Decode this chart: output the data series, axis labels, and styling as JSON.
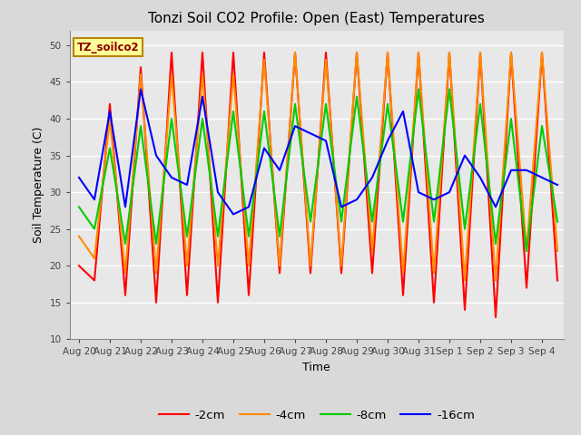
{
  "title": "Tonzi Soil CO2 Profile: Open (East) Temperatures",
  "xlabel": "Time",
  "ylabel": "Soil Temperature (C)",
  "legend_label": "TZ_soilco2",
  "series_labels": [
    "-2cm",
    "-4cm",
    "-8cm",
    "-16cm"
  ],
  "series_colors": [
    "#ff0000",
    "#ff8c00",
    "#00cc00",
    "#0000ff"
  ],
  "background_color": "#f0f0f0",
  "plot_bg_color": "#e8e8e8",
  "x_labels": [
    "Aug 20",
    "Aug 21",
    "Aug 22",
    "Aug 23",
    "Aug 24",
    "Aug 25",
    "Aug 26",
    "Aug 27",
    "Aug 28",
    "Aug 29",
    "Aug 30",
    "Aug 31",
    "Sep 1",
    "Sep 2",
    "Sep 3",
    "Sep 4"
  ],
  "yticks": [
    10,
    15,
    20,
    25,
    30,
    35,
    40,
    45,
    50
  ],
  "ylim": [
    10,
    52
  ],
  "y_2cm": [
    20,
    18,
    42,
    16,
    47,
    15,
    49,
    16,
    49,
    15,
    49,
    16,
    49,
    19,
    49,
    19,
    49,
    19,
    49,
    19,
    49,
    16,
    49,
    15,
    49,
    14,
    49,
    13,
    49,
    17,
    49,
    18
  ],
  "y_4cm": [
    24,
    21,
    40,
    19,
    46,
    19,
    46,
    20,
    46,
    20,
    46,
    20,
    48,
    20,
    49,
    20,
    48,
    20,
    49,
    22,
    49,
    19,
    49,
    19,
    49,
    18,
    49,
    18,
    49,
    22,
    49,
    22
  ],
  "y_8cm": [
    28,
    25,
    36,
    23,
    39,
    23,
    40,
    24,
    40,
    24,
    41,
    24,
    41,
    24,
    42,
    26,
    42,
    26,
    43,
    26,
    42,
    26,
    44,
    26,
    44,
    25,
    42,
    23,
    40,
    22,
    39,
    26
  ],
  "y_16cm": [
    32,
    29,
    41,
    28,
    44,
    35,
    32,
    31,
    43,
    30,
    27,
    28,
    36,
    33,
    39,
    38,
    37,
    28,
    29,
    32,
    37,
    41,
    30,
    29,
    30,
    35,
    32,
    28,
    33,
    33,
    32,
    31
  ]
}
